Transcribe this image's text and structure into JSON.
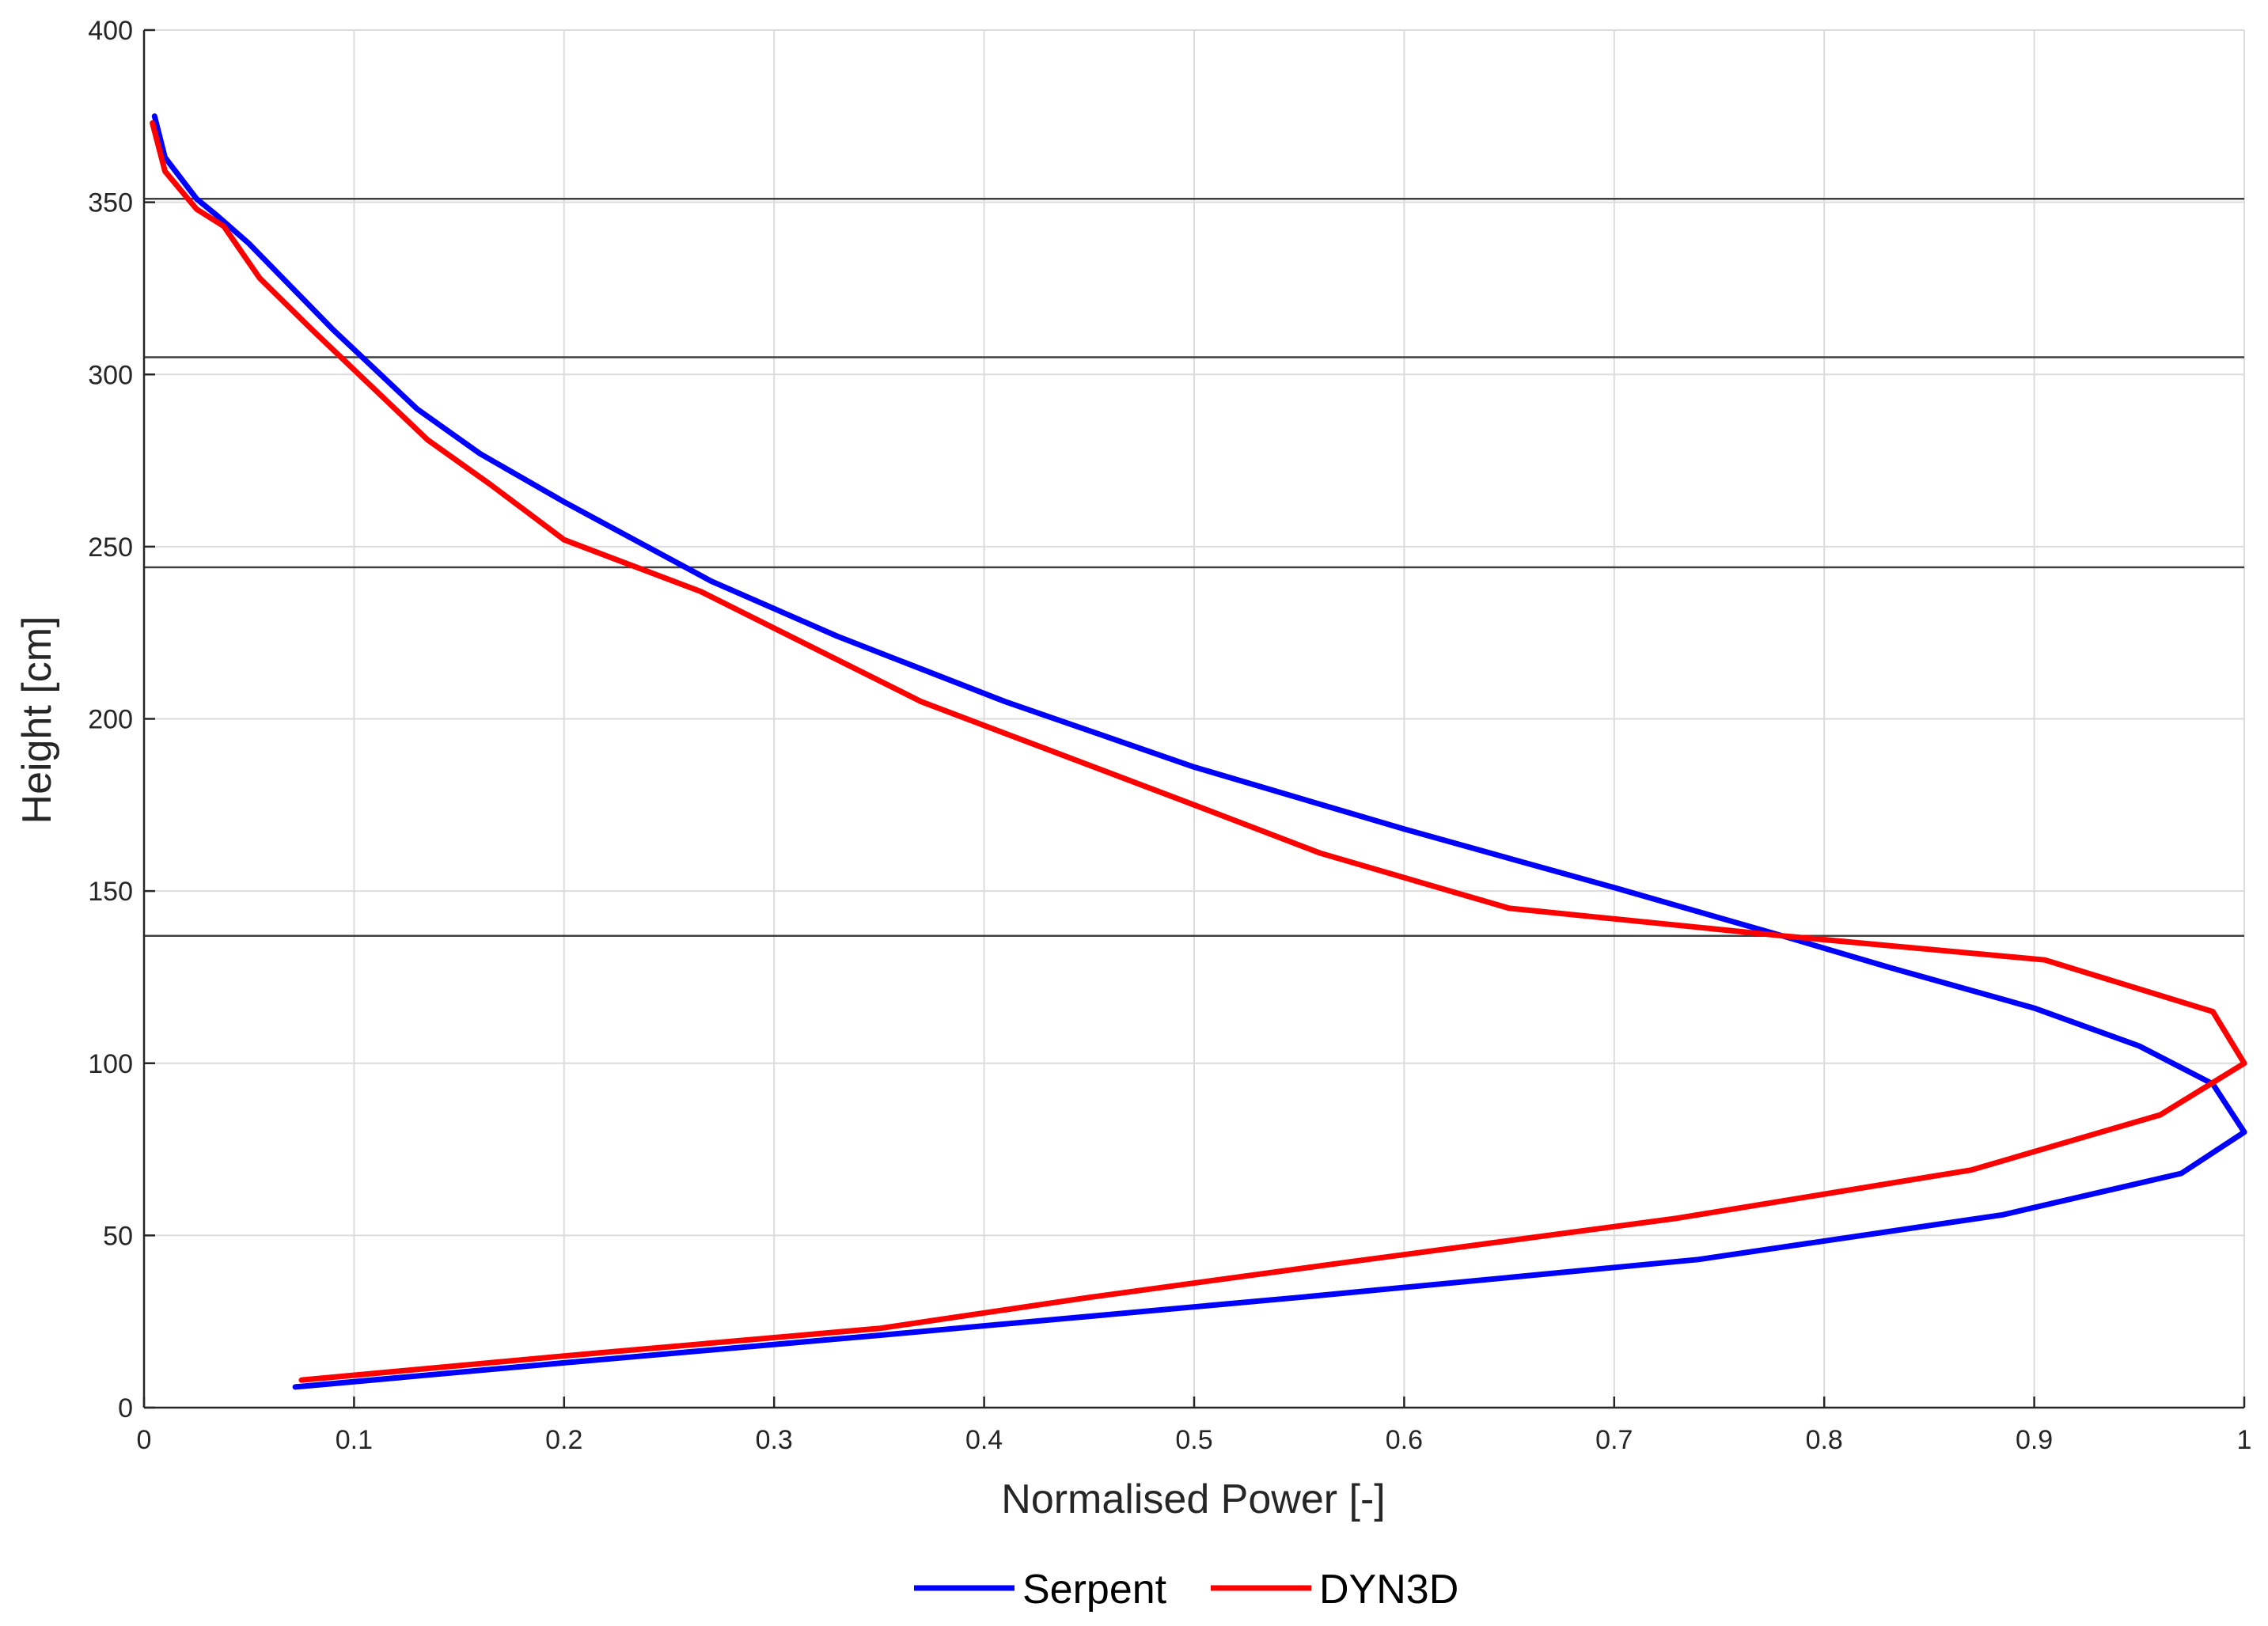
{
  "chart_data": {
    "type": "line",
    "title": "",
    "xlabel": "Normalised Power [-]",
    "ylabel": "Height [cm]",
    "xlim": [
      0,
      1
    ],
    "ylim": [
      0,
      400
    ],
    "xticks": [
      0,
      0.1,
      0.2,
      0.3,
      0.4,
      0.5,
      0.6,
      0.7,
      0.8,
      0.9,
      1
    ],
    "xtick_labels": [
      "0",
      "0.1",
      "0.2",
      "0.3",
      "0.4",
      "0.5",
      "0.6",
      "0.7",
      "0.8",
      "0.9",
      "1"
    ],
    "yticks": [
      0,
      50,
      100,
      150,
      200,
      250,
      300,
      350,
      400
    ],
    "ytick_labels": [
      "0",
      "50",
      "100",
      "150",
      "200",
      "250",
      "300",
      "350",
      "400"
    ],
    "grid": true,
    "legend_position": "bottom-center",
    "reference_lines_y": [
      137,
      244,
      305,
      351
    ],
    "reference_line_color": "#404040",
    "series": [
      {
        "name": "Serpent",
        "color": "#0000ff",
        "x": [
          0.072,
          0.2,
          0.35,
          0.55,
          0.74,
          0.885,
          0.97,
          1.0,
          0.985,
          0.95,
          0.9,
          0.83,
          0.78,
          0.7,
          0.6,
          0.5,
          0.41,
          0.33,
          0.27,
          0.2,
          0.16,
          0.13,
          0.09,
          0.05,
          0.035,
          0.025,
          0.01,
          0.005
        ],
        "y": [
          6,
          13,
          21,
          32,
          43,
          56,
          68,
          80,
          94,
          105,
          116,
          128,
          137,
          151,
          168,
          186,
          205,
          224,
          240,
          263,
          277,
          290,
          313,
          338,
          346,
          351,
          363,
          375
        ]
      },
      {
        "name": "DYN3D",
        "color": "#ff0000",
        "x": [
          0.075,
          0.2,
          0.35,
          0.45,
          0.57,
          0.73,
          0.87,
          0.96,
          1.0,
          0.985,
          0.905,
          0.78,
          0.65,
          0.56,
          0.5,
          0.37,
          0.265,
          0.2,
          0.165,
          0.135,
          0.08,
          0.055,
          0.038,
          0.025,
          0.01,
          0.004
        ],
        "y": [
          8,
          15,
          23,
          32,
          42,
          55,
          69,
          85,
          100,
          115,
          130,
          137,
          145,
          161,
          175,
          205,
          237,
          252,
          268,
          281,
          313,
          328,
          343,
          348,
          359,
          373
        ]
      }
    ]
  }
}
